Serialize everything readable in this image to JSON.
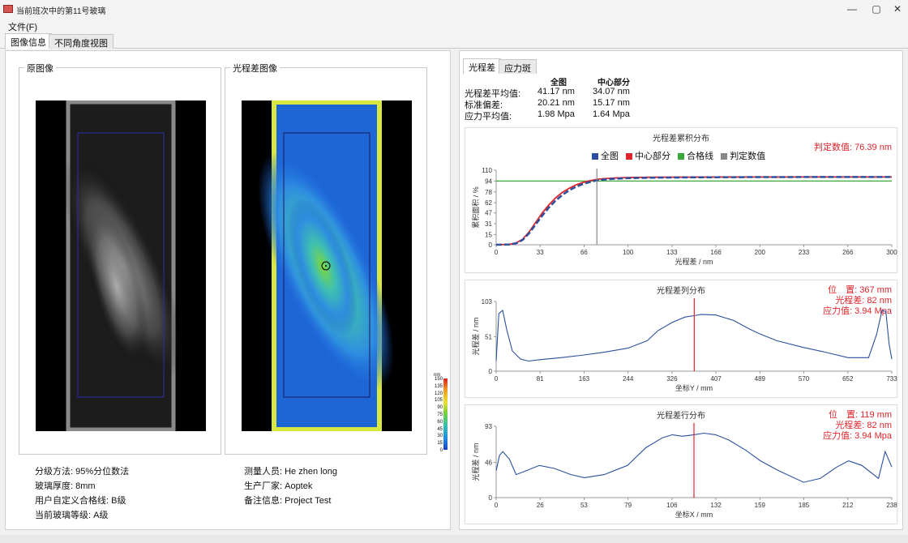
{
  "window": {
    "title": "当前班次中的第11号玻璃",
    "minimize": "—",
    "restore": "▢",
    "close": "✕"
  },
  "menu": {
    "file": "文件(F)"
  },
  "tabs": [
    "图像信息",
    "不同角度视图"
  ],
  "left": {
    "original_label": "原图像",
    "opd_label": "光程差图像",
    "colorbar": {
      "unit": "nm",
      "ticks": [
        "150",
        "135",
        "120",
        "105",
        "90",
        "75",
        "60",
        "45",
        "30",
        "15",
        "0"
      ]
    },
    "info_left": [
      "分级方法: 95%分位数法",
      "玻璃厚度: 8mm",
      "用户自定义合格线: B级",
      "当前玻璃等级: A级"
    ],
    "info_right": [
      "测量人员: He zhen long",
      "生产厂家: Aoptek",
      "备注信息: Project Test"
    ]
  },
  "right": {
    "tabs": [
      "光程差",
      "应力斑"
    ],
    "stats": {
      "headers": [
        "全图",
        "中心部分"
      ],
      "rows": [
        {
          "label": "光程差平均值:",
          "all": "41.17  nm",
          "center": "34.07  nm"
        },
        {
          "label": "标准偏差:",
          "all": "20.21  nm",
          "center": "15.17  nm"
        },
        {
          "label": "应力平均值:",
          "all": "1.98  Mpa",
          "center": "1.64  Mpa"
        }
      ]
    },
    "colors": {
      "all": "#2b4f9e",
      "center": "#e0242a",
      "pass": "#3aa63a",
      "judge": "#888888"
    },
    "cumulative": {
      "title": "光程差累积分布",
      "note": "判定数值: 76.39 nm",
      "legend": [
        "全图",
        "中心部分",
        "合格线",
        "判定数值"
      ],
      "xlabel": "光程差 / nm",
      "ylabel": "累积面积 / %",
      "xticks": [
        "0",
        "33",
        "66",
        "100",
        "133",
        "166",
        "200",
        "233",
        "266",
        "300"
      ],
      "yticks": [
        "0",
        "15",
        "31",
        "47",
        "62",
        "78",
        "94",
        "110"
      ]
    },
    "col_dist": {
      "title": "光程差列分布",
      "note": [
        "位　置: 367 mm",
        "光程差: 82 nm",
        "应力值: 3.94 Mpa"
      ],
      "xlabel": "坐标Y / mm",
      "ylabel": "光程差 / nm",
      "xticks": [
        "0",
        "81",
        "163",
        "244",
        "326",
        "407",
        "489",
        "570",
        "652",
        "733"
      ],
      "yticks": [
        "0",
        "51",
        "103"
      ]
    },
    "row_dist": {
      "title": "光程差行分布",
      "note": [
        "位　置: 119 mm",
        "光程差: 82 nm",
        "应力值: 3.94 Mpa"
      ],
      "xlabel": "坐标X / mm",
      "ylabel": "光程差 / nm",
      "xticks": [
        "0",
        "26",
        "53",
        "79",
        "106",
        "132",
        "159",
        "185",
        "212",
        "238"
      ],
      "yticks": [
        "0",
        "46",
        "93"
      ]
    }
  },
  "chart_data": [
    {
      "type": "line",
      "title": "光程差累积分布",
      "xlabel": "光程差 / nm",
      "ylabel": "累积面积 / %",
      "xlim": [
        0,
        300
      ],
      "ylim": [
        0,
        110
      ],
      "x": [
        0,
        10,
        15,
        20,
        25,
        30,
        35,
        40,
        45,
        50,
        55,
        60,
        65,
        70,
        75,
        80,
        90,
        100,
        120,
        150,
        200,
        250,
        300
      ],
      "series": [
        {
          "name": "全图",
          "values": [
            0,
            0.5,
            2,
            7,
            17,
            30,
            43,
            55,
            65,
            73,
            80,
            85,
            89,
            92,
            94.5,
            96,
            97.5,
            98.3,
            99,
            99.5,
            99.8,
            100,
            100
          ]
        },
        {
          "name": "中心部分",
          "values": [
            0,
            0.6,
            2.5,
            8,
            19,
            33,
            47,
            59,
            69,
            77,
            83,
            88,
            91.5,
            94,
            96,
            97.3,
            98.5,
            99.2,
            99.6,
            99.8,
            100,
            100,
            100
          ]
        },
        {
          "name": "合格线",
          "values": [
            94,
            94,
            94,
            94,
            94,
            94,
            94,
            94,
            94,
            94,
            94,
            94,
            94,
            94,
            94,
            94,
            94,
            94,
            94,
            94,
            94,
            94,
            94
          ]
        }
      ],
      "judge_x": 76.39
    },
    {
      "type": "line",
      "title": "光程差列分布",
      "xlabel": "坐标Y / mm",
      "ylabel": "光程差 / nm",
      "xlim": [
        0,
        733
      ],
      "ylim": [
        0,
        103
      ],
      "x": [
        0,
        5,
        12,
        20,
        30,
        45,
        60,
        81,
        120,
        163,
        200,
        244,
        280,
        300,
        326,
        350,
        367,
        380,
        407,
        440,
        470,
        489,
        520,
        570,
        610,
        652,
        690,
        705,
        715,
        722,
        728,
        733
      ],
      "series": [
        {
          "name": "光程差列分布",
          "values": [
            15,
            85,
            90,
            60,
            30,
            18,
            15,
            17,
            20,
            24,
            28,
            34,
            45,
            60,
            72,
            80,
            82,
            84,
            83,
            75,
            62,
            55,
            45,
            35,
            28,
            20,
            20,
            55,
            90,
            88,
            40,
            18
          ]
        }
      ],
      "cursor_x": 367
    },
    {
      "type": "line",
      "title": "光程差行分布",
      "xlabel": "坐标X / mm",
      "ylabel": "光程差 / nm",
      "xlim": [
        0,
        238
      ],
      "ylim": [
        0,
        93
      ],
      "x": [
        0,
        2,
        4,
        8,
        12,
        18,
        26,
        35,
        45,
        53,
        65,
        79,
        90,
        100,
        106,
        112,
        119,
        125,
        132,
        140,
        150,
        159,
        170,
        185,
        195,
        205,
        212,
        220,
        230,
        234,
        236,
        238
      ],
      "series": [
        {
          "name": "光程差行分布",
          "values": [
            35,
            55,
            60,
            50,
            30,
            35,
            42,
            38,
            30,
            26,
            30,
            42,
            65,
            78,
            82,
            80,
            82,
            84,
            82,
            75,
            62,
            48,
            35,
            20,
            25,
            40,
            48,
            42,
            25,
            60,
            50,
            40
          ]
        }
      ],
      "cursor_x": 119
    }
  ]
}
